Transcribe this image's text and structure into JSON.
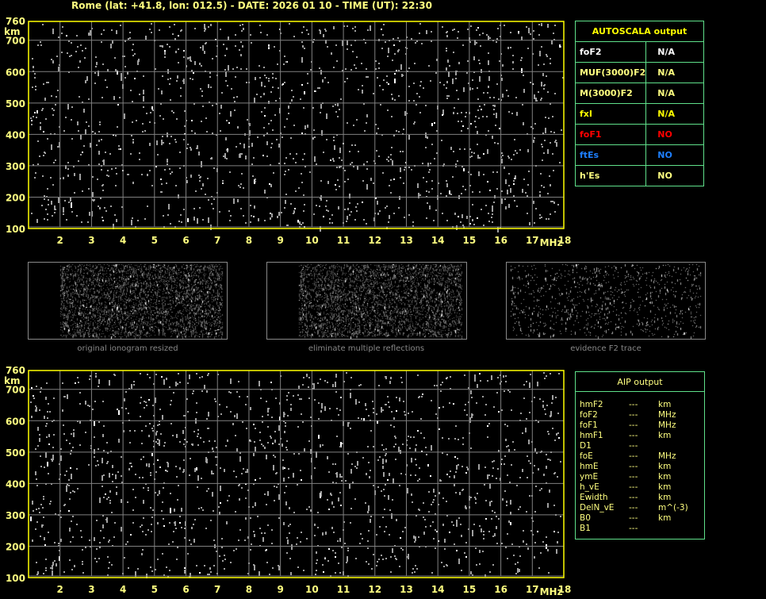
{
  "header": {
    "title": "Rome (lat: +41.8, lon: 012.5) - DATE: 2026 01 10 - TIME (UT): 22:30"
  },
  "chart_data": [
    {
      "type": "scatter",
      "xlabel": "MHz",
      "ylabel": "km",
      "xlim": [
        1,
        18
      ],
      "ylim": [
        100,
        760
      ],
      "x_ticks": [
        "2",
        "3",
        "4",
        "5",
        "6",
        "7",
        "8",
        "9",
        "10",
        "11",
        "12",
        "13",
        "14",
        "15",
        "16",
        "17",
        "18"
      ],
      "y_ticks": [
        "100",
        "200",
        "300",
        "400",
        "500",
        "600",
        "700",
        "760"
      ],
      "grid": true,
      "colors": {
        "axis": "#ffff00",
        "grid": "#808080",
        "noise": "#a0a0a0"
      }
    },
    {
      "type": "scatter",
      "xlabel": "MHz",
      "ylabel": "km",
      "xlim": [
        1,
        18
      ],
      "ylim": [
        100,
        760
      ],
      "x_ticks": [
        "2",
        "3",
        "4",
        "5",
        "6",
        "7",
        "8",
        "9",
        "10",
        "11",
        "12",
        "13",
        "14",
        "15",
        "16",
        "17",
        "18"
      ],
      "y_ticks": [
        "100",
        "200",
        "300",
        "400",
        "500",
        "600",
        "700",
        "760"
      ],
      "grid": true,
      "colors": {
        "axis": "#ffff00",
        "grid": "#808080",
        "noise": "#a0a0a0"
      }
    }
  ],
  "thumbnails": [
    {
      "label": "original ionogram resized"
    },
    {
      "label": "eliminate multiple reflections"
    },
    {
      "label": "evidence F2 trace"
    }
  ],
  "autoscala": {
    "title": "AUTOSCALA output",
    "rows": [
      {
        "name": "foF2",
        "value": "N/A",
        "name_color": "#ffffff",
        "value_color": "#ffffff"
      },
      {
        "name": "MUF(3000)F2",
        "value": "N/A",
        "name_color": "#ffff80",
        "value_color": "#ffff80"
      },
      {
        "name": "M(3000)F2",
        "value": "N/A",
        "name_color": "#ffff80",
        "value_color": "#ffff80"
      },
      {
        "name": "fxI",
        "value": "N/A",
        "name_color": "#ffff00",
        "value_color": "#ffff00"
      },
      {
        "name": "foF1",
        "value": "NO",
        "name_color": "#ff0000",
        "value_color": "#ff0000"
      },
      {
        "name": "ftEs",
        "value": "NO",
        "name_color": "#1e7fff",
        "value_color": "#1e7fff"
      },
      {
        "name": "h'Es",
        "value": "NO",
        "name_color": "#ffff80",
        "value_color": "#ffff80"
      }
    ]
  },
  "aip": {
    "title": "AIP output",
    "rows": [
      {
        "name": "hmF2",
        "value": "---",
        "unit": "km"
      },
      {
        "name": "foF2",
        "value": "---",
        "unit": "MHz"
      },
      {
        "name": "foF1",
        "value": "---",
        "unit": "MHz"
      },
      {
        "name": "hmF1",
        "value": "---",
        "unit": "km"
      },
      {
        "name": "D1",
        "value": "---",
        "unit": ""
      },
      {
        "name": "foE",
        "value": "---",
        "unit": "MHz"
      },
      {
        "name": "hmE",
        "value": "---",
        "unit": "km"
      },
      {
        "name": "ymE",
        "value": "---",
        "unit": "km"
      },
      {
        "name": "h_vE",
        "value": "---",
        "unit": "km"
      },
      {
        "name": "Ewidth",
        "value": "---",
        "unit": "km"
      },
      {
        "name": "DelN_vE",
        "value": "---",
        "unit": "m^(-3)"
      },
      {
        "name": "B0",
        "value": "---",
        "unit": "km"
      },
      {
        "name": "B1",
        "value": "---",
        "unit": ""
      }
    ]
  }
}
